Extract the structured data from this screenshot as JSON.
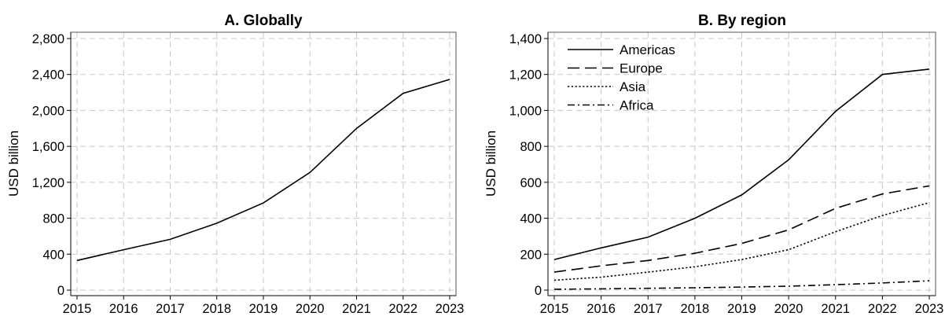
{
  "chart_data": [
    {
      "type": "line",
      "title": "A. Globally",
      "xlabel": "",
      "ylabel": "USD billion",
      "x": [
        2015,
        2016,
        2017,
        2018,
        2019,
        2020,
        2021,
        2022,
        2023
      ],
      "xlim": [
        2015,
        2023
      ],
      "ylim": [
        0,
        2800
      ],
      "yticks": [
        0,
        400,
        800,
        1200,
        1600,
        2000,
        2400,
        2800
      ],
      "ytick_labels": [
        "0",
        "400",
        "800",
        "1,200",
        "1,600",
        "2,000",
        "2,400",
        "2,800"
      ],
      "xtick_labels": [
        "2015",
        "2016",
        "2017",
        "2018",
        "2019",
        "2020",
        "2021",
        "2022",
        "2023"
      ],
      "grid": true,
      "series": [
        {
          "values": [
            330,
            450,
            565,
            745,
            970,
            1310,
            1800,
            2190,
            2345
          ],
          "color": "#000000",
          "dash": "solid"
        }
      ]
    },
    {
      "type": "line",
      "title": "B. By region",
      "xlabel": "",
      "ylabel": "USD billion",
      "x": [
        2015,
        2016,
        2017,
        2018,
        2019,
        2020,
        2021,
        2022,
        2023
      ],
      "xlim": [
        2015,
        2023
      ],
      "ylim": [
        0,
        1400
      ],
      "yticks": [
        0,
        200,
        400,
        600,
        800,
        1000,
        1200,
        1400
      ],
      "ytick_labels": [
        "0",
        "200",
        "400",
        "600",
        "800",
        "1,000",
        "1,200",
        "1,400"
      ],
      "xtick_labels": [
        "2015",
        "2016",
        "2017",
        "2018",
        "2019",
        "2020",
        "2021",
        "2022",
        "2023"
      ],
      "grid": true,
      "legend_position": "top-left",
      "series": [
        {
          "name": "Americas",
          "values": [
            170,
            235,
            295,
            400,
            530,
            725,
            995,
            1200,
            1230
          ],
          "color": "#000000",
          "dash": "solid"
        },
        {
          "name": "Europe",
          "values": [
            100,
            135,
            165,
            205,
            260,
            335,
            455,
            535,
            580
          ],
          "color": "#000000",
          "dash": "long-dash"
        },
        {
          "name": "Asia",
          "values": [
            55,
            72,
            100,
            130,
            170,
            225,
            325,
            415,
            487
          ],
          "color": "#000000",
          "dash": "dotted"
        },
        {
          "name": "Africa",
          "values": [
            5,
            7,
            10,
            13,
            17,
            22,
            30,
            40,
            52
          ],
          "color": "#000000",
          "dash": "dash-dot"
        }
      ]
    }
  ]
}
